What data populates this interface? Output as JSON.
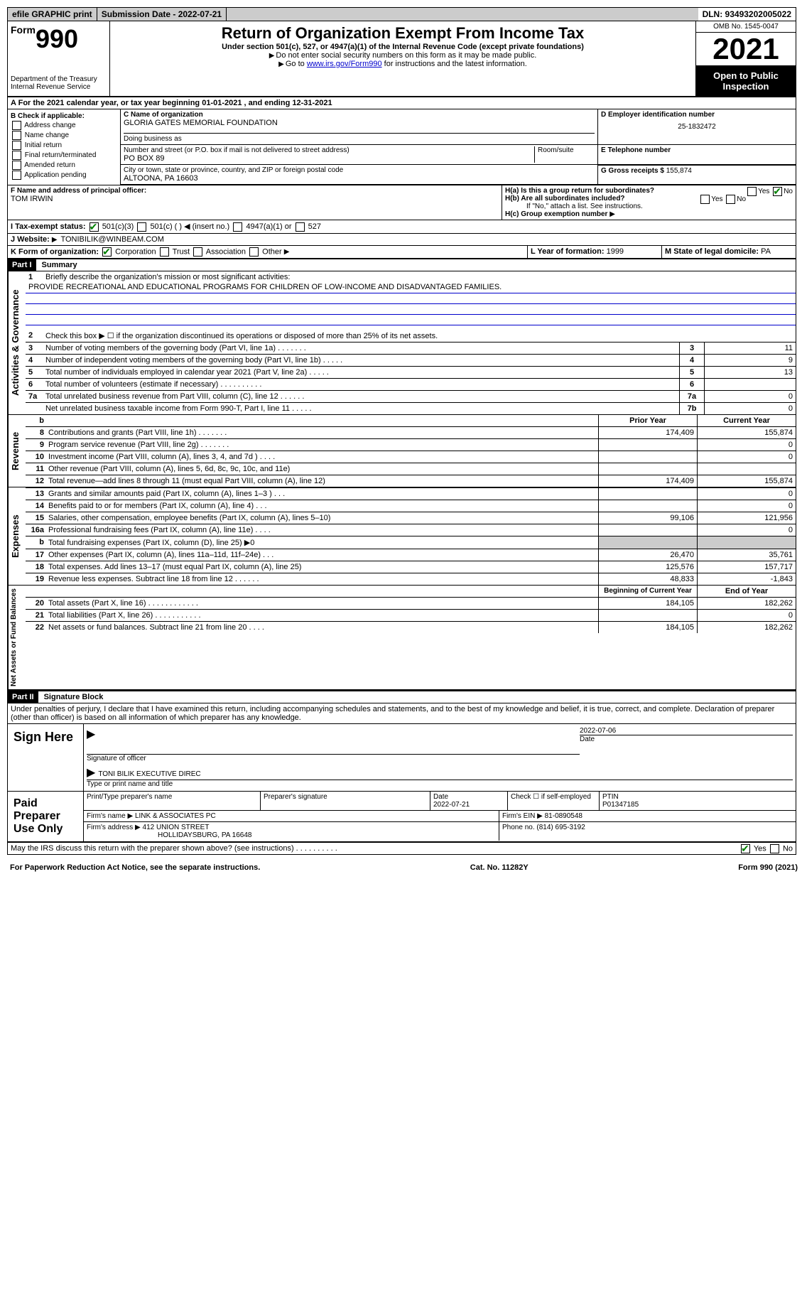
{
  "top": {
    "efile": "efile GRAPHIC print",
    "subdate": "Submission Date - 2022-07-21",
    "dln": "DLN: 93493202005022"
  },
  "header": {
    "form_word": "Form",
    "form_num": "990",
    "title": "Return of Organization Exempt From Income Tax",
    "sub": "Under section 501(c), 527, or 4947(a)(1) of the Internal Revenue Code (except private foundations)",
    "note1": "Do not enter social security numbers on this form as it may be made public.",
    "note2_pre": "Go to ",
    "note2_link": "www.irs.gov/Form990",
    "note2_post": " for instructions and the latest information.",
    "dept": "Department of the Treasury\nInternal Revenue Service",
    "omb": "OMB No. 1545-0047",
    "year": "2021",
    "open": "Open to Public Inspection"
  },
  "sectionA": {
    "year_line": "For the 2021 calendar year, or tax year beginning 01-01-2021   , and ending 12-31-2021",
    "b_label": "B Check if applicable:",
    "b_items": [
      "Address change",
      "Name change",
      "Initial return",
      "Final return/terminated",
      "Amended return",
      "Application pending"
    ],
    "c_label": "C Name of organization",
    "c_value": "GLORIA GATES MEMORIAL FOUNDATION",
    "dba_label": "Doing business as",
    "addr_label": "Number and street (or P.O. box if mail is not delivered to street address)",
    "addr_value": "PO BOX 89",
    "room_label": "Room/suite",
    "city_label": "City or town, state or province, country, and ZIP or foreign postal code",
    "city_value": "ALTOONA, PA  16603",
    "d_label": "D Employer identification number",
    "d_value": "25-1832472",
    "e_label": "E Telephone number",
    "g_label": "G Gross receipts $",
    "g_value": "155,874",
    "f_label": "F Name and address of principal officer:",
    "f_value": "TOM IRWIN",
    "ha_label": "H(a)  Is this a group return for subordinates?",
    "hb_label": "H(b)  Are all subordinates included?",
    "hb_note": "If \"No,\" attach a list. See instructions.",
    "hc_label": "H(c)  Group exemption number",
    "yes": "Yes",
    "no": "No",
    "i_label": "I   Tax-exempt status:",
    "i_501c3": "501(c)(3)",
    "i_501c": "501(c) (  )",
    "i_insert": "(insert no.)",
    "i_4947": "4947(a)(1) or",
    "i_527": "527",
    "j_label": "J   Website:",
    "j_value": "TONIBILIK@WINBEAM.COM",
    "k_label": "K Form of organization:",
    "k_corp": "Corporation",
    "k_trust": "Trust",
    "k_assoc": "Association",
    "k_other": "Other",
    "l_label": "L Year of formation:",
    "l_value": "1999",
    "m_label": "M State of legal domicile:",
    "m_value": "PA"
  },
  "part1": {
    "label": "Part I",
    "title": "Summary",
    "side_gov": "Activities & Governance",
    "side_rev": "Revenue",
    "side_exp": "Expenses",
    "side_net": "Net Assets or Fund Balances",
    "l1_label": "Briefly describe the organization's mission or most significant activities:",
    "l1_value": "PROVIDE RECREATIONAL AND EDUCATIONAL PROGRAMS FOR CHILDREN OF LOW-INCOME AND DISADVANTAGED FAMILIES.",
    "l2": "Check this box ▶ ☐  if the organization discontinued its operations or disposed of more than 25% of its net assets.",
    "lines_gov": [
      {
        "n": "3",
        "t": "Number of voting members of the governing body (Part VI, line 1a)   .   .   .   .   .   .   .",
        "r": "3",
        "v": "11"
      },
      {
        "n": "4",
        "t": "Number of independent voting members of the governing body (Part VI, line 1b)   .   .   .   .   .",
        "r": "4",
        "v": "9"
      },
      {
        "n": "5",
        "t": "Total number of individuals employed in calendar year 2021 (Part V, line 2a)   .   .   .   .   .",
        "r": "5",
        "v": "13"
      },
      {
        "n": "6",
        "t": "Total number of volunteers (estimate if necessary)   .   .   .   .   .   .   .   .   .   .",
        "r": "6",
        "v": ""
      },
      {
        "n": "7a",
        "t": "Total unrelated business revenue from Part VIII, column (C), line 12   .   .   .   .   .   .",
        "r": "7a",
        "v": "0"
      },
      {
        "n": "",
        "t": "Net unrelated business taxable income from Form 990-T, Part I, line 11   .   .   .   .   .",
        "r": "7b",
        "v": "0"
      }
    ],
    "py_label": "Prior Year",
    "cy_label": "Current Year",
    "lines_rev": [
      {
        "n": "8",
        "t": "Contributions and grants (Part VIII, line 1h)   .   .   .   .   .   .   .",
        "py": "174,409",
        "cy": "155,874"
      },
      {
        "n": "9",
        "t": "Program service revenue (Part VIII, line 2g)   .   .   .   .   .   .   .",
        "py": "",
        "cy": "0"
      },
      {
        "n": "10",
        "t": "Investment income (Part VIII, column (A), lines 3, 4, and 7d )   .   .   .   .",
        "py": "",
        "cy": "0"
      },
      {
        "n": "11",
        "t": "Other revenue (Part VIII, column (A), lines 5, 6d, 8c, 9c, 10c, and 11e)",
        "py": "",
        "cy": ""
      },
      {
        "n": "12",
        "t": "Total revenue—add lines 8 through 11 (must equal Part VIII, column (A), line 12)",
        "py": "174,409",
        "cy": "155,874"
      }
    ],
    "lines_exp": [
      {
        "n": "13",
        "t": "Grants and similar amounts paid (Part IX, column (A), lines 1–3 )   .   .   .",
        "py": "",
        "cy": "0"
      },
      {
        "n": "14",
        "t": "Benefits paid to or for members (Part IX, column (A), line 4)   .   .   .",
        "py": "",
        "cy": "0"
      },
      {
        "n": "15",
        "t": "Salaries, other compensation, employee benefits (Part IX, column (A), lines 5–10)",
        "py": "99,106",
        "cy": "121,956"
      },
      {
        "n": "16a",
        "t": "Professional fundraising fees (Part IX, column (A), line 11e)   .   .   .   .",
        "py": "",
        "cy": "0"
      },
      {
        "n": "b",
        "t": "Total fundraising expenses (Part IX, column (D), line 25) ▶0",
        "py": "shade",
        "cy": "shade"
      },
      {
        "n": "17",
        "t": "Other expenses (Part IX, column (A), lines 11a–11d, 11f–24e)   .   .   .",
        "py": "26,470",
        "cy": "35,761"
      },
      {
        "n": "18",
        "t": "Total expenses. Add lines 13–17 (must equal Part IX, column (A), line 25)",
        "py": "125,576",
        "cy": "157,717"
      },
      {
        "n": "19",
        "t": "Revenue less expenses. Subtract line 18 from line 12   .   .   .   .   .   .",
        "py": "48,833",
        "cy": "-1,843"
      }
    ],
    "boy_label": "Beginning of Current Year",
    "eoy_label": "End of Year",
    "lines_net": [
      {
        "n": "20",
        "t": "Total assets (Part X, line 16)   .   .   .   .   .   .   .   .   .   .   .   .",
        "py": "184,105",
        "cy": "182,262"
      },
      {
        "n": "21",
        "t": "Total liabilities (Part X, line 26)   .   .   .   .   .   .   .   .   .   .   .",
        "py": "",
        "cy": "0"
      },
      {
        "n": "22",
        "t": "Net assets or fund balances. Subtract line 21 from line 20   .   .   .   .",
        "py": "184,105",
        "cy": "182,262"
      }
    ]
  },
  "part2": {
    "label": "Part II",
    "title": "Signature Block",
    "perjury": "Under penalties of perjury, I declare that I have examined this return, including accompanying schedules and statements, and to the best of my knowledge and belief, it is true, correct, and complete. Declaration of preparer (other than officer) is based on all information of which preparer has any knowledge.",
    "sign_here": "Sign Here",
    "sig_officer": "Signature of officer",
    "sig_date_label": "Date",
    "sig_date": "2022-07-06",
    "sig_name": "TONI BILIK  EXECUTIVE DIREC",
    "sig_type": "Type or print name and title",
    "paid": "Paid Preparer Use Only",
    "print_name": "Print/Type preparer's name",
    "prep_sig": "Preparer's signature",
    "date_label": "Date",
    "date_val": "2022-07-21",
    "check_label": "Check ☐ if self-employed",
    "ptin_label": "PTIN",
    "ptin_val": "P01347185",
    "firm_name_label": "Firm's name   ▶",
    "firm_name": "LINK & ASSOCIATES PC",
    "firm_ein_label": "Firm's EIN ▶",
    "firm_ein": "81-0890548",
    "firm_addr_label": "Firm's address ▶",
    "firm_addr": "412 UNION STREET",
    "firm_city": "HOLLIDAYSBURG, PA  16648",
    "phone_label": "Phone no.",
    "phone_val": "(814) 695-3192",
    "discuss": "May the IRS discuss this return with the preparer shown above? (see instructions)   .   .   .   .   .   .   .   .   .   .",
    "footer_left": "For Paperwork Reduction Act Notice, see the separate instructions.",
    "footer_mid": "Cat. No. 11282Y",
    "footer_right": "Form 990 (2021)"
  }
}
